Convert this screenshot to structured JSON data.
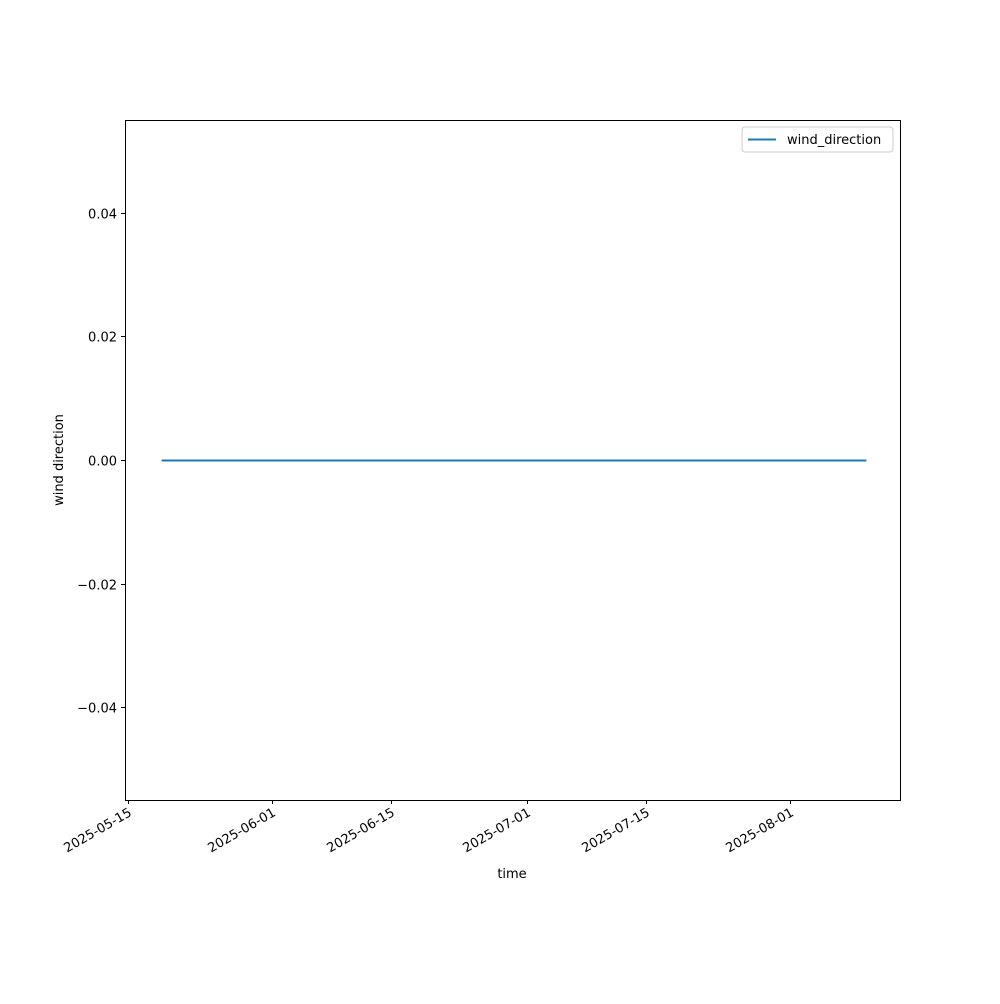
{
  "chart_data": {
    "type": "line",
    "title": "",
    "xlabel": "time",
    "ylabel": "wind direction",
    "x_range": [
      "2025-05-14",
      "2025-08-15"
    ],
    "ylim": [
      -0.055,
      0.055
    ],
    "grid": false,
    "legend_position": "top-right",
    "x_ticks": [
      "2025-05-15",
      "2025-06-01",
      "2025-06-15",
      "2025-07-01",
      "2025-07-15",
      "2025-08-01"
    ],
    "y_ticks": [
      -0.04,
      -0.02,
      0.0,
      0.02,
      0.04
    ],
    "y_tick_labels": [
      "−0.04",
      "−0.02",
      "0.00",
      "0.02",
      "0.04"
    ],
    "series": [
      {
        "name": "wind_direction",
        "color": "#1f77b4",
        "x": [
          "2025-05-19",
          "2025-08-10"
        ],
        "y": [
          0,
          0
        ]
      }
    ]
  }
}
